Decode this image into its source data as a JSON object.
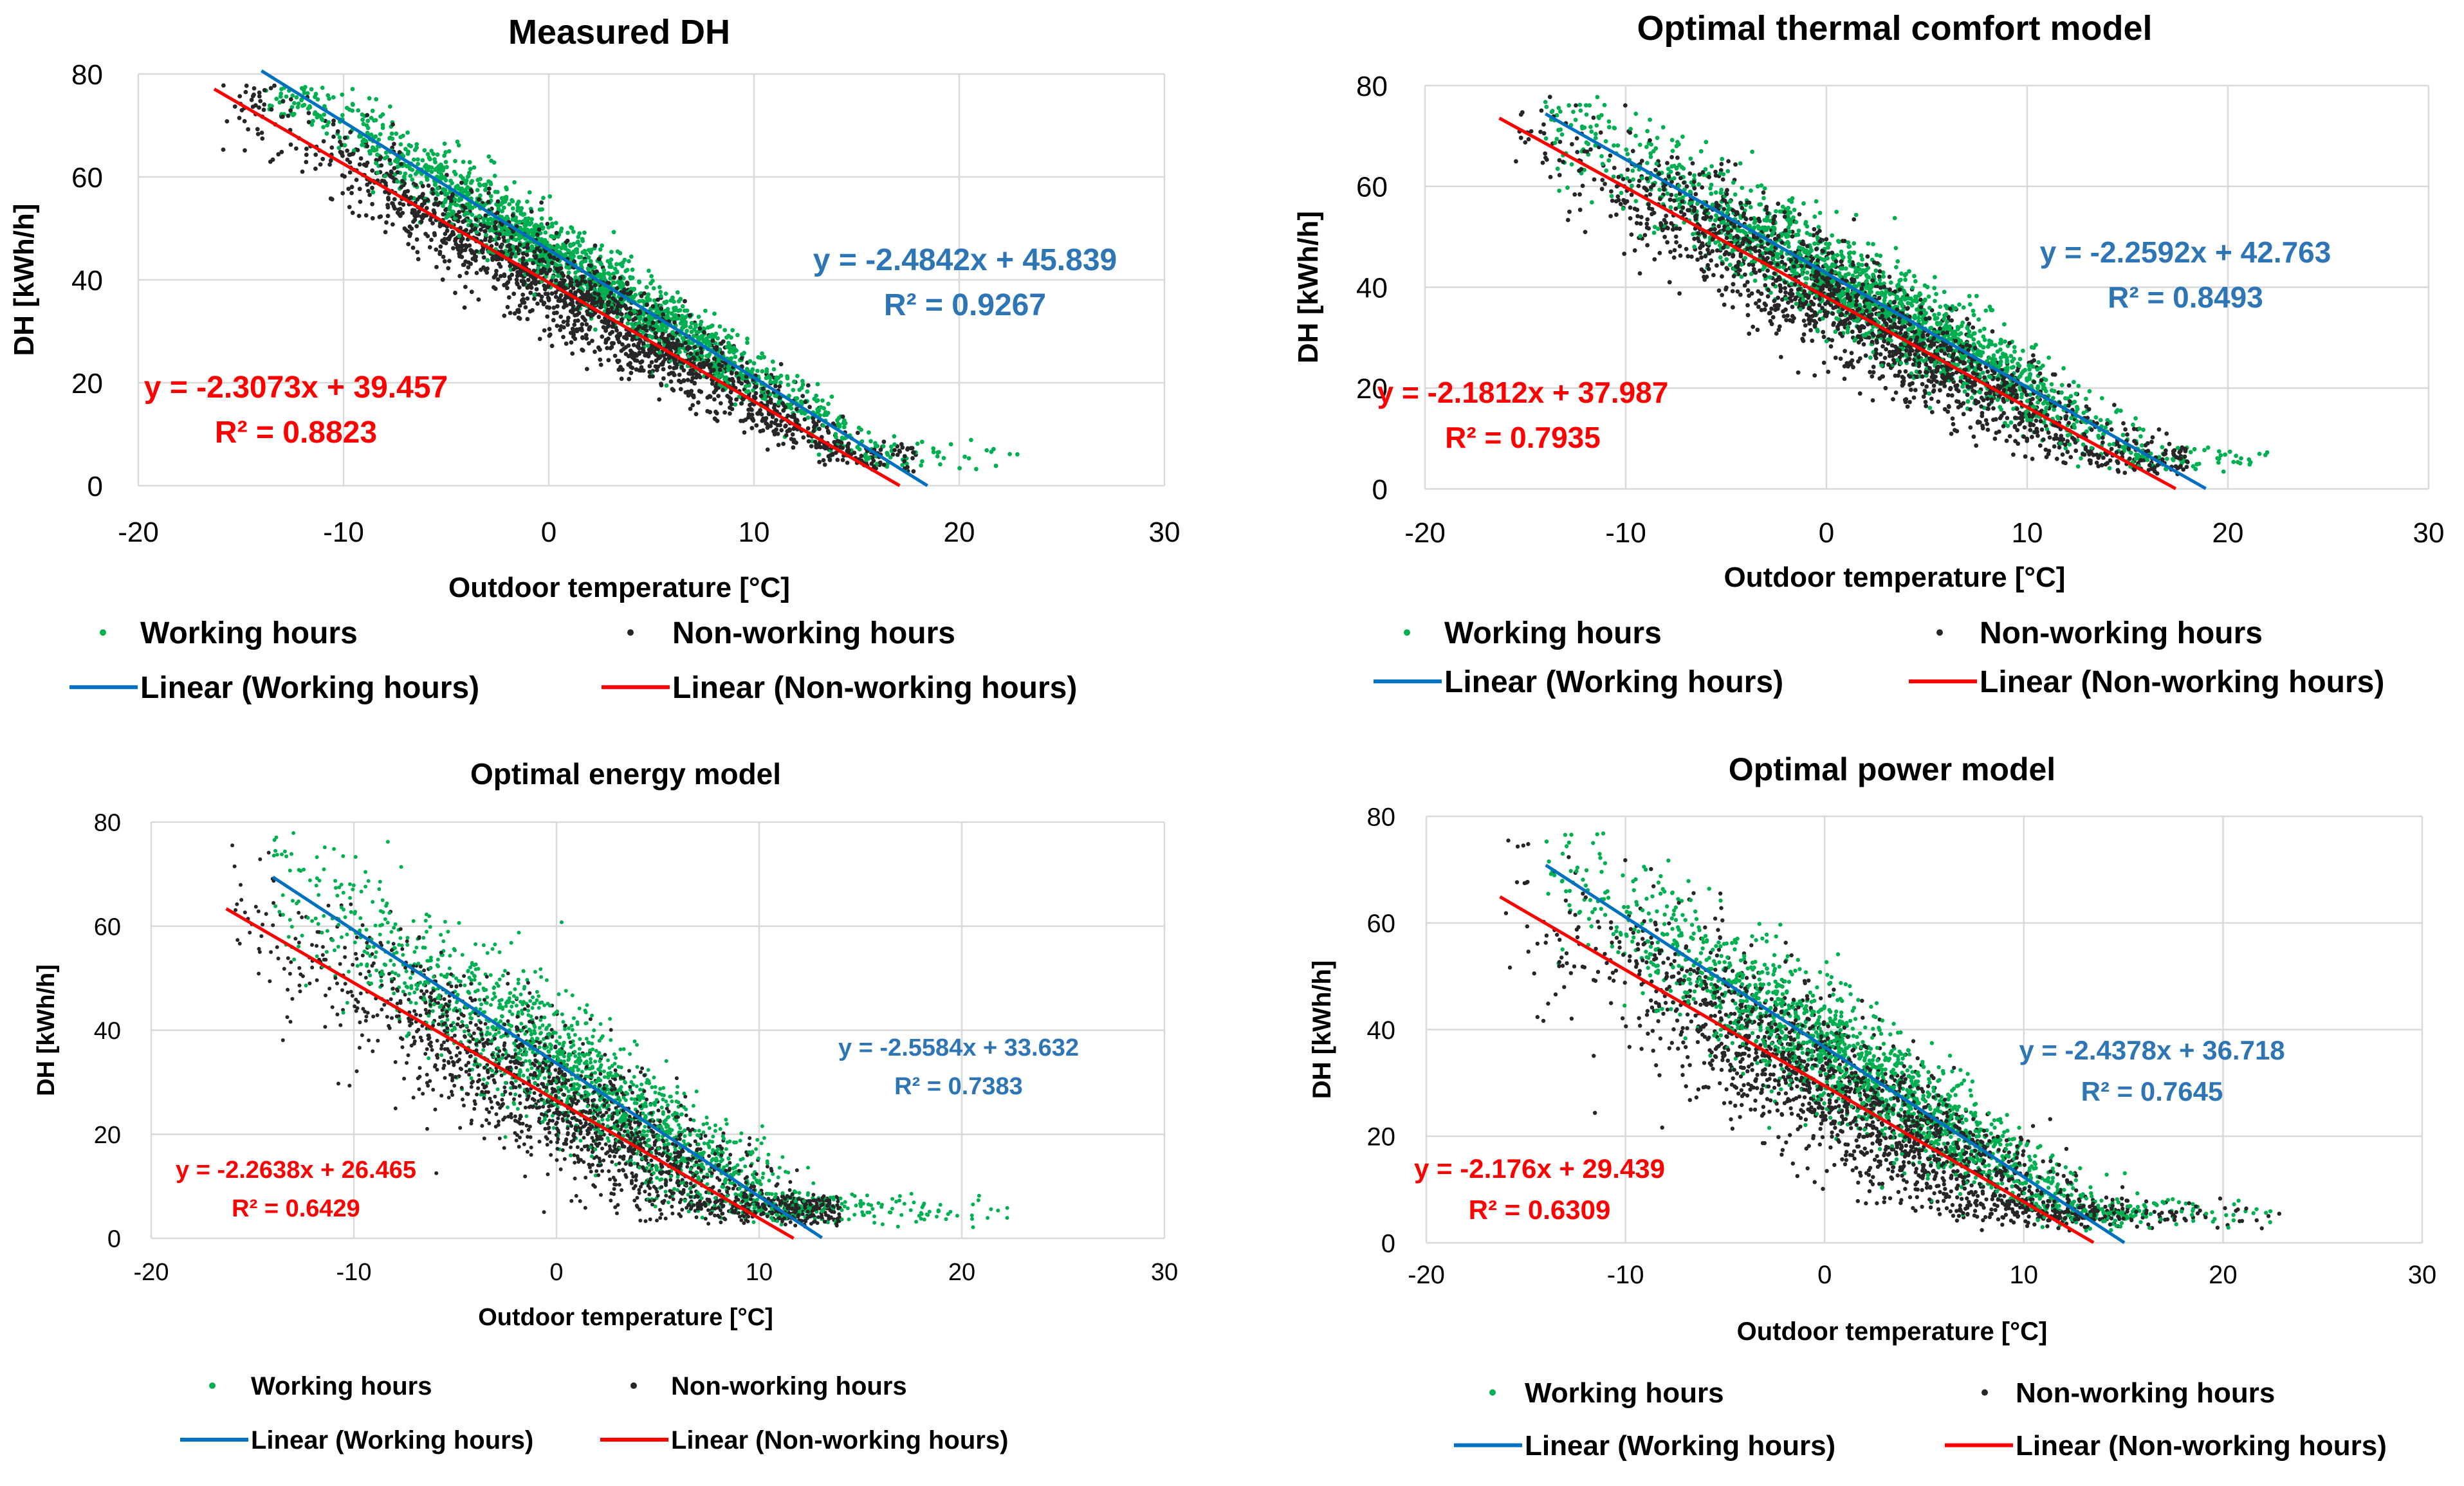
{
  "colors": {
    "working": "#00b050",
    "nonworking": "#262626",
    "linear_working": "#0070c0",
    "linear_nonworking": "#ff0000",
    "eq_blue": "#2e75b6",
    "eq_red": "#ff0000",
    "grid": "#d9d9d9"
  },
  "chart_data": [
    {
      "type": "scatter",
      "title": "Measured DH",
      "xlabel": "Outdoor temperature [°C]",
      "ylabel": "DH [kWh/h]",
      "xlim": [
        -20,
        30
      ],
      "ylim": [
        0,
        80
      ],
      "x_ticks": [
        -20,
        -10,
        0,
        10,
        20,
        30
      ],
      "y_ticks": [
        0,
        20,
        40,
        60,
        80
      ],
      "x_tick_labels": [
        "-20",
        "-10",
        "0",
        "10",
        "20",
        "30"
      ],
      "y_tick_labels": [
        "0",
        "20",
        "40",
        "60",
        "80"
      ],
      "series": [
        {
          "name": "Working hours",
          "kind": "scatter",
          "x_range": [
            -14,
            23
          ],
          "slope": -2.4842,
          "intercept": 45.839,
          "r2": 0.9267,
          "equation": "y = -2.4842x + 45.839",
          "r2_label": "R² = 0.9267"
        },
        {
          "name": "Non-working hours",
          "kind": "scatter",
          "x_range": [
            -16,
            18
          ],
          "slope": -2.3073,
          "intercept": 39.457,
          "r2": 0.8823,
          "equation": "y = -2.3073x + 39.457",
          "r2_label": "R² = 0.8823"
        }
      ],
      "trendlines": [
        {
          "name": "Linear (Working hours)",
          "x_start": -14,
          "x_end": 18.45,
          "slope": -2.4842,
          "intercept": 45.839
        },
        {
          "name": "Linear (Non-working hours)",
          "x_start": -16.3,
          "x_end": 17.1,
          "slope": -2.3073,
          "intercept": 39.457
        }
      ],
      "legend": [
        "Working hours",
        "Non-working hours",
        "Linear (Working hours)",
        "Linear (Non-working hours)"
      ],
      "legend_position": "bottom"
    },
    {
      "type": "scatter",
      "title": "Optimal thermal comfort model",
      "xlabel": "Outdoor temperature [°C]",
      "ylabel": "DH [kWh/h]",
      "xlim": [
        -20,
        30
      ],
      "ylim": [
        0,
        80
      ],
      "x_ticks": [
        -20,
        -10,
        0,
        10,
        20,
        30
      ],
      "y_ticks": [
        0,
        20,
        40,
        60,
        80
      ],
      "x_tick_labels": [
        "-20",
        "-10",
        "0",
        "10",
        "20",
        "30"
      ],
      "y_tick_labels": [
        "0",
        "20",
        "40",
        "60",
        "80"
      ],
      "series": [
        {
          "name": "Working hours",
          "kind": "scatter",
          "x_range": [
            -14,
            22
          ],
          "slope": -2.2592,
          "intercept": 42.763,
          "r2": 0.8493,
          "equation": "y = -2.2592x + 42.763",
          "r2_label": "R² = 0.8493"
        },
        {
          "name": "Non-working hours",
          "kind": "scatter",
          "x_range": [
            -16,
            18
          ],
          "slope": -2.1812,
          "intercept": 37.987,
          "r2": 0.7935,
          "equation": "y = -2.1812x + 37.987",
          "r2_label": "R² = 0.7935"
        }
      ],
      "trendlines": [
        {
          "name": "Linear (Working hours)",
          "x_start": -14,
          "x_end": 18.9,
          "slope": -2.2592,
          "intercept": 42.763
        },
        {
          "name": "Linear (Non-working hours)",
          "x_start": -16.3,
          "x_end": 17.4,
          "slope": -2.1812,
          "intercept": 37.987
        }
      ],
      "legend": [
        "Working hours",
        "Non-working hours",
        "Linear (Working hours)",
        "Linear (Non-working hours)"
      ],
      "legend_position": "bottom"
    },
    {
      "type": "scatter",
      "title": "Optimal energy model",
      "xlabel": "Outdoor temperature [°C]",
      "ylabel": "DH [kWh/h]",
      "xlim": [
        -20,
        30
      ],
      "ylim": [
        0,
        80
      ],
      "x_ticks": [
        -20,
        -10,
        0,
        10,
        20,
        30
      ],
      "y_ticks": [
        0,
        20,
        40,
        60,
        80
      ],
      "x_tick_labels": [
        "-20",
        "-10",
        "0",
        "10",
        "20",
        "30"
      ],
      "y_tick_labels": [
        "0",
        "20",
        "40",
        "60",
        "80"
      ],
      "series": [
        {
          "name": "Working hours",
          "kind": "scatter",
          "x_range": [
            -14,
            23
          ],
          "slope": -2.5584,
          "intercept": 33.632,
          "r2": 0.7383,
          "equation": "y = -2.5584x + 33.632",
          "r2_label": "R² = 0.7383"
        },
        {
          "name": "Non-working hours",
          "kind": "scatter",
          "x_range": [
            -16,
            14
          ],
          "slope": -2.2638,
          "intercept": 26.465,
          "r2": 0.6429,
          "equation": "y = -2.2638x + 26.465",
          "r2_label": "R² = 0.6429"
        }
      ],
      "trendlines": [
        {
          "name": "Linear (Working hours)",
          "x_start": -14,
          "x_end": 13.1,
          "slope": -2.5584,
          "intercept": 33.632
        },
        {
          "name": "Linear (Non-working hours)",
          "x_start": -16.3,
          "x_end": 11.7,
          "slope": -2.2638,
          "intercept": 26.465
        }
      ],
      "legend": [
        "Working hours",
        "Non-working hours",
        "Linear (Working hours)",
        "Linear (Non-working hours)"
      ],
      "legend_position": "bottom"
    },
    {
      "type": "scatter",
      "title": "Optimal power model",
      "xlabel": "Outdoor temperature [°C]",
      "ylabel": "DH [kWh/h]",
      "xlim": [
        -20,
        30
      ],
      "ylim": [
        0,
        80
      ],
      "x_ticks": [
        -20,
        -10,
        0,
        10,
        20,
        30
      ],
      "y_ticks": [
        0,
        20,
        40,
        60,
        80
      ],
      "x_tick_labels": [
        "-20",
        "-10",
        "0",
        "10",
        "20",
        "30"
      ],
      "y_tick_labels": [
        "0",
        "20",
        "40",
        "60",
        "80"
      ],
      "series": [
        {
          "name": "Working hours",
          "kind": "scatter",
          "x_range": [
            -14,
            23
          ],
          "slope": -2.4378,
          "intercept": 36.718,
          "r2": 0.7645,
          "equation": "y = -2.4378x + 36.718",
          "r2_label": "R² = 0.7645"
        },
        {
          "name": "Non-working hours",
          "kind": "scatter",
          "x_range": [
            -16,
            23
          ],
          "slope": -2.176,
          "intercept": 29.439,
          "r2": 0.6309,
          "equation": "y = -2.176x + 29.439",
          "r2_label": "R² = 0.6309"
        }
      ],
      "trendlines": [
        {
          "name": "Linear (Working hours)",
          "x_start": -14,
          "x_end": 15.05,
          "slope": -2.4378,
          "intercept": 36.718
        },
        {
          "name": "Linear (Non-working hours)",
          "x_start": -16.3,
          "x_end": 13.5,
          "slope": -2.176,
          "intercept": 29.439
        }
      ],
      "legend": [
        "Working hours",
        "Non-working hours",
        "Linear (Working hours)",
        "Linear (Non-working hours)"
      ],
      "legend_position": "bottom"
    }
  ]
}
